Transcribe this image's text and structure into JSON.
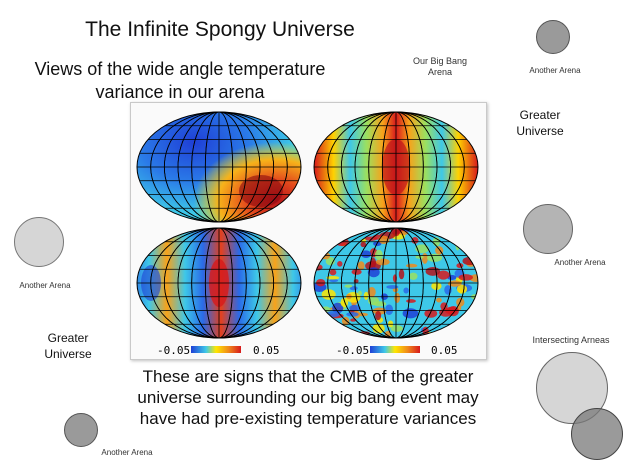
{
  "slide": {
    "title": "The Infinite Spongy Universe",
    "subtitle_line1": "Views of the wide angle temperature",
    "subtitle_line2": "variance in our arena",
    "caption_line1": "These are signs that the CMB of the greater",
    "caption_line2": "universe surrounding our big bang event may",
    "caption_line3": "have had pre-existing temperature variances"
  },
  "labels": {
    "our_big_bang_line1": "Our Big Bang",
    "our_big_bang_line2": "Arena",
    "another_arena_top": "Another Arena",
    "greater_universe_right_line1": "Greater",
    "greater_universe_right_line2": "Universe",
    "another_arena_right": "Another Arena",
    "another_arena_left": "Another Arena",
    "greater_universe_left_line1": "Greater",
    "greater_universe_left_line2": "Universe",
    "intersecting": "Intersecting Arneas",
    "another_arena_bottom": "Another Arena"
  },
  "figure": {
    "scale_min_left": "-0.05",
    "scale_max_left": "0.05",
    "scale_min_right": "-0.05",
    "scale_max_right": "0.05"
  },
  "colors": {
    "bubble_fill": "#cfcfcf",
    "bubble_dark": "#9a9a9a",
    "map_red": "#d7191c",
    "map_yellow": "#ffe600",
    "map_cyan": "#3ec8e8",
    "map_blue": "#1f3fd6"
  }
}
